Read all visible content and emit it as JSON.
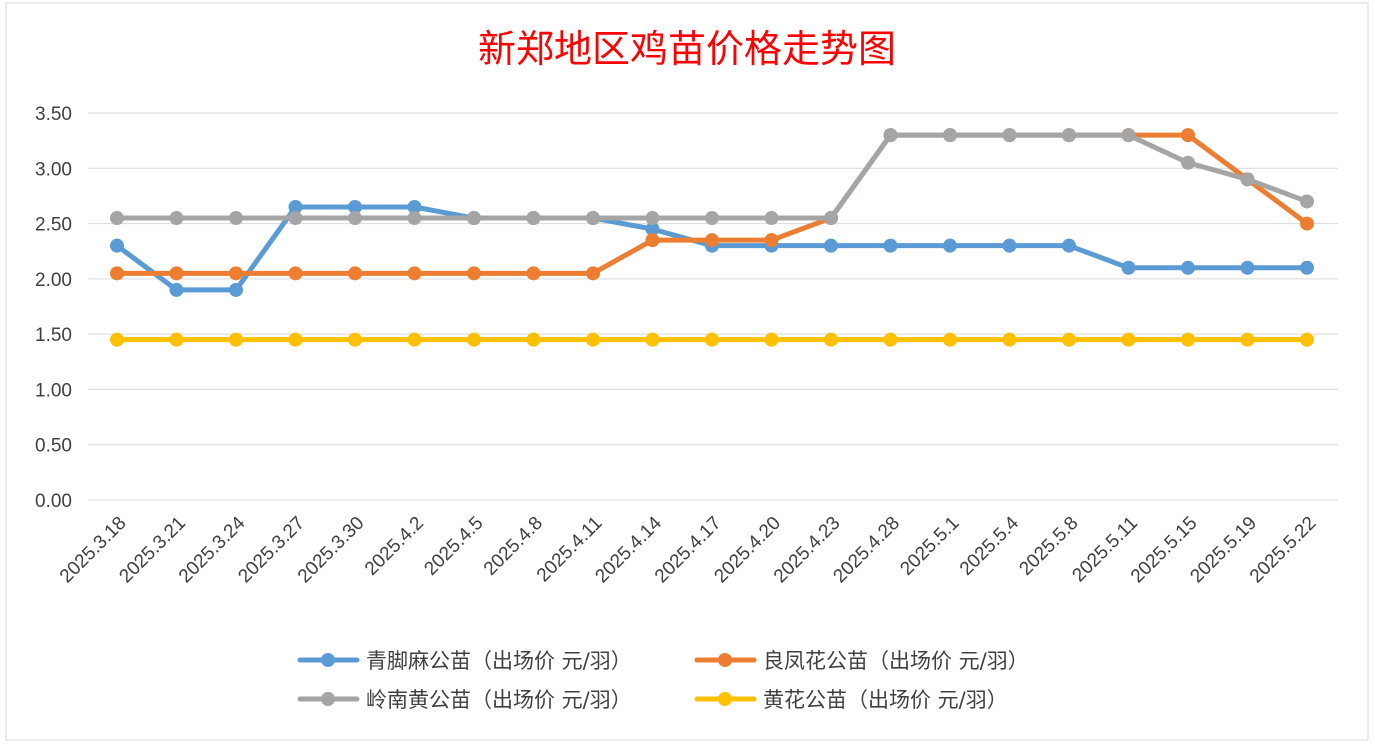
{
  "chart_data": {
    "type": "line",
    "title": "新郑地区鸡苗价格走势图",
    "xlabel": "",
    "ylabel": "",
    "ylim": [
      0,
      3.5
    ],
    "ytick_step": 0.5,
    "ytick_labels": [
      "0.00",
      "0.50",
      "1.00",
      "1.50",
      "2.00",
      "2.50",
      "3.00",
      "3.50"
    ],
    "grid": "horizontal",
    "legend_position": "bottom",
    "categories": [
      "2025.3.18",
      "2025.3.21",
      "2025.3.24",
      "2025.3.27",
      "2025.3.30",
      "2025.4.2",
      "2025.4.5",
      "2025.4.8",
      "2025.4.11",
      "2025.4.14",
      "2025.4.17",
      "2025.4.20",
      "2025.4.23",
      "2025.4.28",
      "2025.5.1",
      "2025.5.4",
      "2025.5.8",
      "2025.5.11",
      "2025.5.15",
      "2025.5.19",
      "2025.5.22"
    ],
    "series": [
      {
        "name": "青脚麻公苗（出场价 元/羽）",
        "color": "#5b9bd5",
        "values": [
          2.3,
          1.9,
          1.9,
          2.65,
          2.65,
          2.65,
          2.55,
          2.55,
          2.55,
          2.45,
          2.3,
          2.3,
          2.3,
          2.3,
          2.3,
          2.3,
          2.3,
          2.1,
          2.1,
          2.1,
          2.1
        ]
      },
      {
        "name": "良凤花公苗（出场价 元/羽）",
        "color": "#ed7d31",
        "values": [
          2.05,
          2.05,
          2.05,
          2.05,
          2.05,
          2.05,
          2.05,
          2.05,
          2.05,
          2.35,
          2.35,
          2.35,
          2.55,
          3.3,
          3.3,
          3.3,
          3.3,
          3.3,
          3.3,
          2.9,
          2.5
        ]
      },
      {
        "name": "岭南黄公苗（出场价 元/羽）",
        "color": "#a5a5a5",
        "values": [
          2.55,
          2.55,
          2.55,
          2.55,
          2.55,
          2.55,
          2.55,
          2.55,
          2.55,
          2.55,
          2.55,
          2.55,
          2.55,
          3.3,
          3.3,
          3.3,
          3.3,
          3.3,
          3.05,
          2.9,
          2.7
        ]
      },
      {
        "name": "黄花公苗（出场价 元/羽）",
        "color": "#ffc000",
        "values": [
          1.45,
          1.45,
          1.45,
          1.45,
          1.45,
          1.45,
          1.45,
          1.45,
          1.45,
          1.45,
          1.45,
          1.45,
          1.45,
          1.45,
          1.45,
          1.45,
          1.45,
          1.45,
          1.45,
          1.45,
          1.45
        ]
      }
    ]
  }
}
